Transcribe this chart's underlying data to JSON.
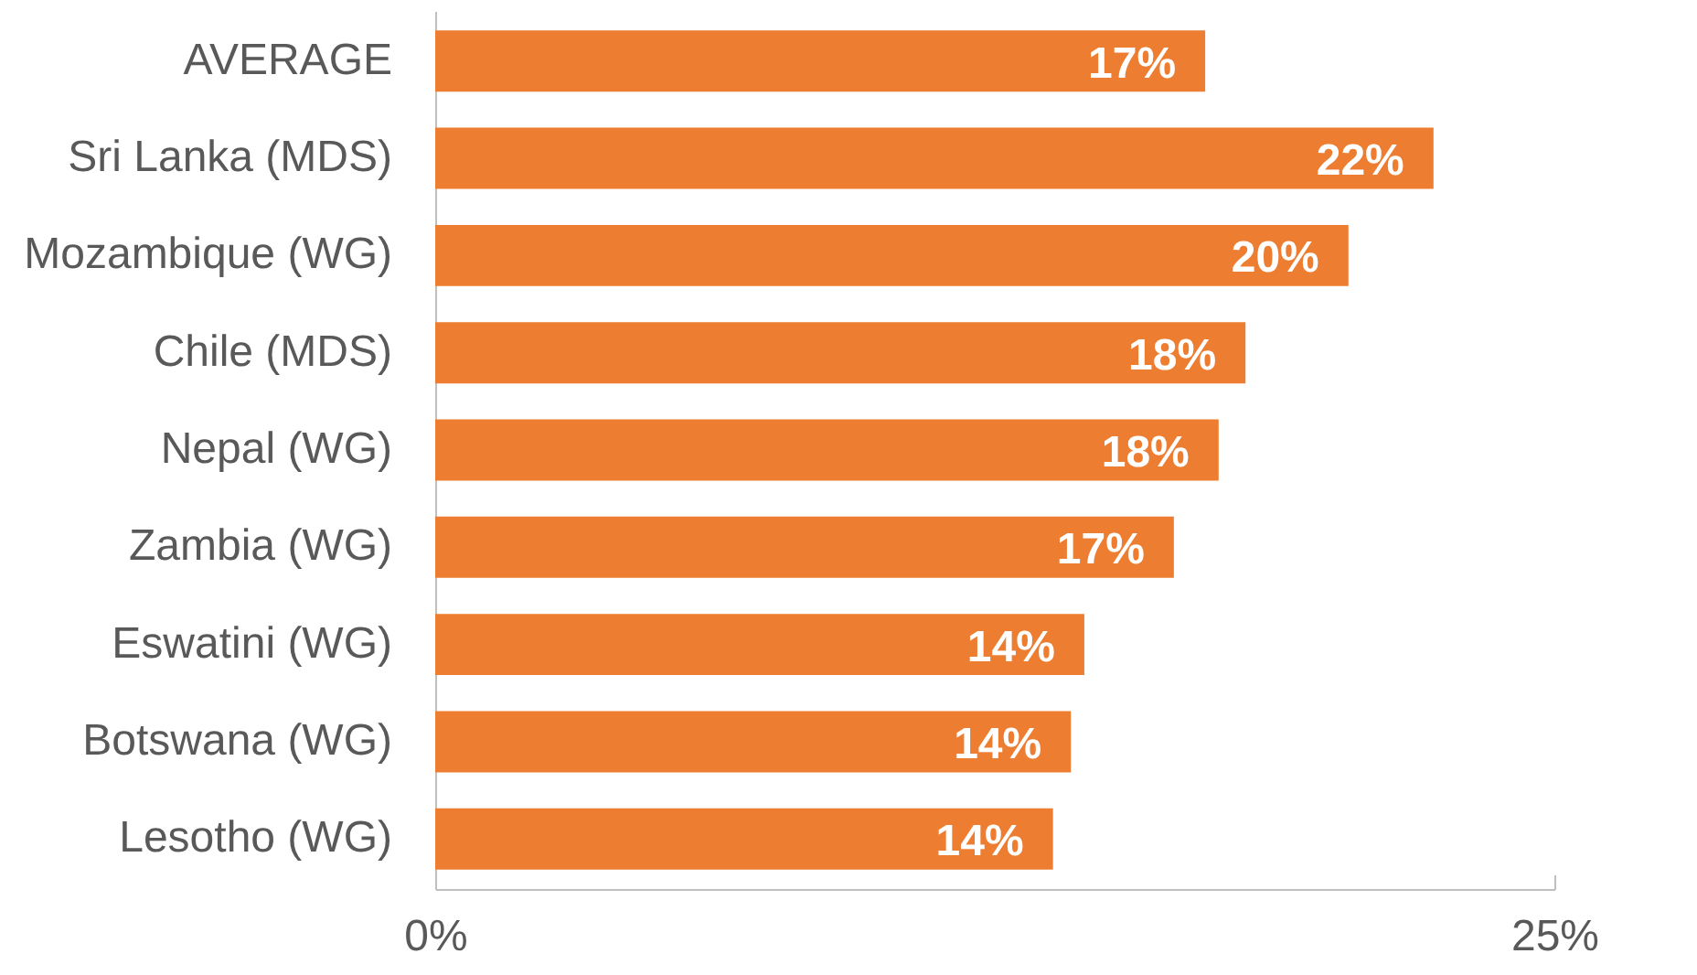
{
  "chart_data": {
    "type": "bar",
    "orientation": "horizontal",
    "categories": [
      "AVERAGE",
      "Sri Lanka (MDS)",
      "Mozambique (WG)",
      "Chile (MDS)",
      "Nepal (WG)",
      "Zambia (WG)",
      "Eswatini (WG)",
      "Botswana (WG)",
      "Lesotho (WG)"
    ],
    "values": [
      17.2,
      22.3,
      20.4,
      18.1,
      17.5,
      16.5,
      14.5,
      14.2,
      13.8
    ],
    "value_labels": [
      "17%",
      "22%",
      "20%",
      "18%",
      "18%",
      "17%",
      "14%",
      "14%",
      "14%"
    ],
    "color": "#ed7d31",
    "xlim": [
      0,
      25
    ],
    "xticks": [
      {
        "value": 0,
        "label": "0%"
      },
      {
        "value": 25,
        "label": "25%"
      }
    ],
    "grid": false
  }
}
